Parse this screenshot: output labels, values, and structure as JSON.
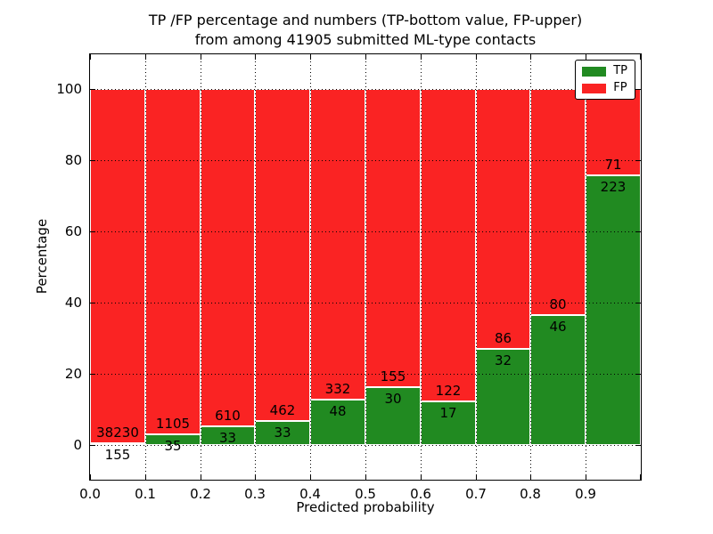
{
  "chart_data": {
    "type": "bar",
    "stacked": true,
    "normalized_to_percent": true,
    "title": "TP /FP percentage and numbers (TP-bottom value, FP-upper)",
    "subtitle": "from among 41905 submitted ML-type contacts",
    "xlabel": "Predicted probability",
    "ylabel": "Percentage",
    "x_tick_labels": [
      "0.0",
      "0.1",
      "0.2",
      "0.3",
      "0.4",
      "0.5",
      "0.6",
      "0.7",
      "0.8",
      "0.9"
    ],
    "y_ticks": [
      0,
      20,
      40,
      60,
      80,
      100
    ],
    "xlim": [
      0.0,
      1.0
    ],
    "ylim": [
      -10,
      110
    ],
    "bin_width": 0.1,
    "grid": "dotted",
    "categories": [
      "0.0-0.1",
      "0.1-0.2",
      "0.2-0.3",
      "0.3-0.4",
      "0.4-0.5",
      "0.5-0.6",
      "0.6-0.7",
      "0.7-0.8",
      "0.8-0.9",
      "0.9-1.0"
    ],
    "series": [
      {
        "name": "TP",
        "counts": [
          155,
          35,
          33,
          33,
          48,
          30,
          17,
          32,
          46,
          223
        ]
      },
      {
        "name": "FP",
        "counts": [
          38230,
          1105,
          610,
          462,
          332,
          155,
          122,
          86,
          80,
          71
        ]
      }
    ],
    "legend": {
      "position": "upper right",
      "entries": [
        {
          "label": "TP",
          "color": "#218a21"
        },
        {
          "label": "FP",
          "color": "#fa2323"
        }
      ]
    }
  },
  "colors": {
    "tp": "#218a21",
    "fp": "#fa2323",
    "grid": "#000000",
    "frame": "#000000",
    "text": "#000000",
    "background": "#ffffff"
  }
}
